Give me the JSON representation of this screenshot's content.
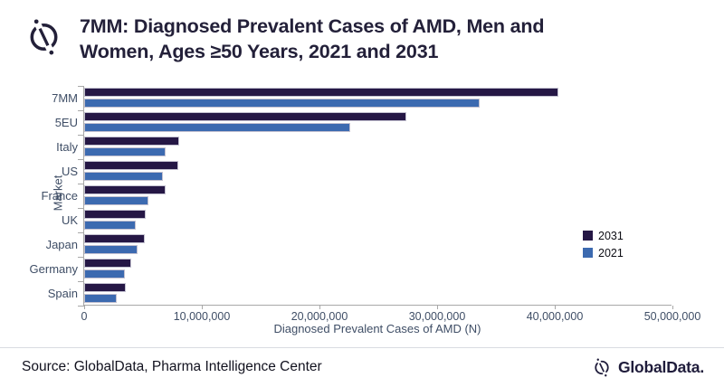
{
  "header": {
    "title_line1": "7MM: Diagnosed Prevalent Cases of AMD, Men and",
    "title_line2": "Women, Ages ≥50 Years, 2021 and 2031",
    "logo_icon": "globaldata-mark"
  },
  "chart_data": {
    "type": "bar",
    "orientation": "horizontal",
    "title": "7MM: Diagnosed Prevalent Cases of AMD, Men and Women, Ages ≥50 Years, 2021 and 2031",
    "categories": [
      "7MM",
      "5EU",
      "Italy",
      "US",
      "France",
      "UK",
      "Japan",
      "Germany",
      "Spain"
    ],
    "series": [
      {
        "name": "2031",
        "color": "#251745",
        "values": [
          40300000,
          27400000,
          8100000,
          8000000,
          6950000,
          5250000,
          5150000,
          4000000,
          3500000
        ]
      },
      {
        "name": "2021",
        "color": "#3c6ab0",
        "values": [
          33600000,
          22600000,
          6950000,
          6700000,
          5450000,
          4350000,
          4550000,
          3450000,
          2800000
        ]
      }
    ],
    "xlabel": "Diagnosed Prevalent Cases of AMD (N)",
    "ylabel": "Market",
    "xlim": [
      0,
      50000000
    ],
    "xticks": [
      0,
      10000000,
      20000000,
      30000000,
      40000000,
      50000000
    ],
    "xtick_labels": [
      "0",
      "10,000,000",
      "20,000,000",
      "30,000,000",
      "40,000,000",
      "50,000,000"
    ],
    "legend_position": "right-middle",
    "grid": false,
    "axis_color": "#a8a8a8"
  },
  "footer": {
    "source": "Source: GlobalData, Pharma Intelligence Center",
    "brand": "GlobalData."
  }
}
